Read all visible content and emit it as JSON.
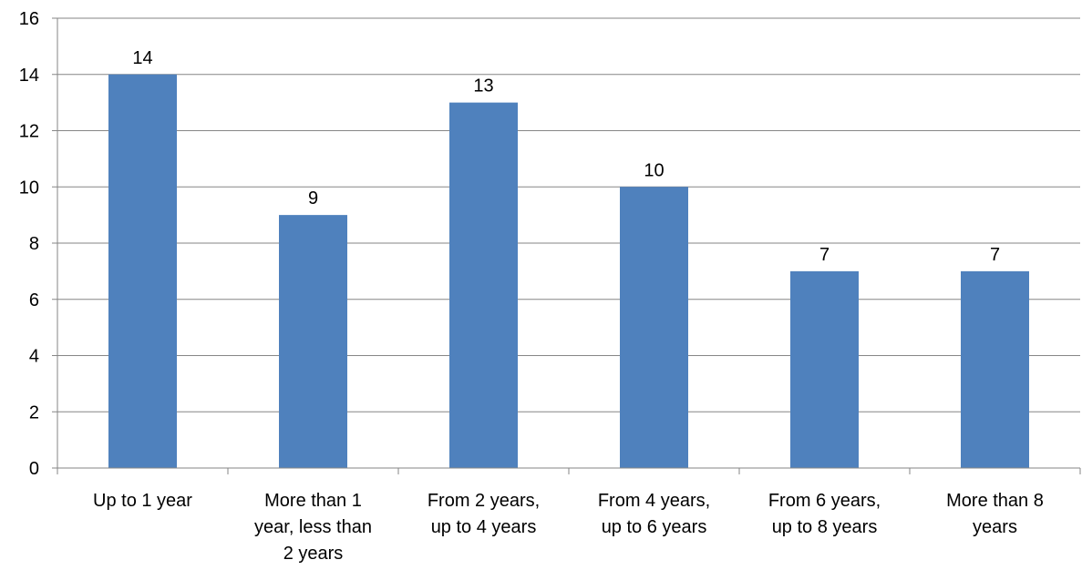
{
  "chart_data": {
    "type": "bar",
    "categories": [
      [
        "Up to 1 year"
      ],
      [
        "More than 1",
        "year, less than",
        "2 years"
      ],
      [
        "From 2 years,",
        "up to 4 years"
      ],
      [
        "From 4 years,",
        "up to 6 years"
      ],
      [
        "From 6 years,",
        "up to 8 years"
      ],
      [
        "More than 8",
        "years"
      ]
    ],
    "values": [
      14,
      9,
      13,
      10,
      7,
      7
    ],
    "data_labels": [
      "14",
      "9",
      "13",
      "10",
      "7",
      "7"
    ],
    "yticks": [
      "0",
      "2",
      "4",
      "6",
      "8",
      "10",
      "12",
      "14",
      "16"
    ],
    "ylim": [
      0,
      16
    ],
    "grid": true,
    "legend": "none",
    "title": "",
    "xlabel": "",
    "ylabel": "",
    "colors": {
      "bar": "#4F81BD",
      "grid": "#868686",
      "axis": "#868686",
      "text": "#000000"
    }
  }
}
